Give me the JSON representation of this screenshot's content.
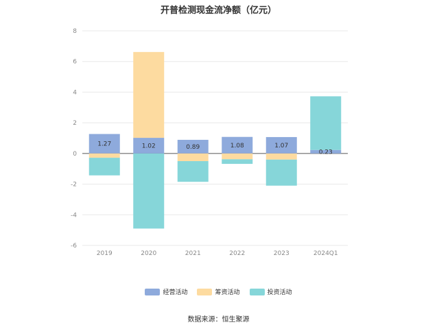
{
  "chart_data": {
    "type": "bar",
    "stacked": true,
    "title": "开普检测现金流净额（亿元）",
    "categories": [
      "2019",
      "2020",
      "2021",
      "2022",
      "2023",
      "2024Q1"
    ],
    "ylim": [
      -6,
      8
    ],
    "yticks": [
      8,
      6,
      4,
      2,
      0,
      -2,
      -4,
      -6
    ],
    "grid": true,
    "legend_position": "bottom",
    "series": [
      {
        "name": "经营活动",
        "color": "#8eaadc",
        "values": [
          1.27,
          1.02,
          0.89,
          1.08,
          1.07,
          0.23
        ]
      },
      {
        "name": "筹资活动",
        "color": "#fddba0",
        "values": [
          -0.28,
          5.6,
          -0.5,
          -0.38,
          -0.4,
          0
        ]
      },
      {
        "name": "投资活动",
        "color": "#86d6d9",
        "values": [
          -1.15,
          -4.9,
          -1.35,
          -0.3,
          -1.7,
          3.5
        ]
      }
    ],
    "data_labels": [
      "1.27",
      "1.02",
      "0.89",
      "1.08",
      "1.07",
      "0.23"
    ]
  },
  "source": "数据来源：恒生聚源"
}
